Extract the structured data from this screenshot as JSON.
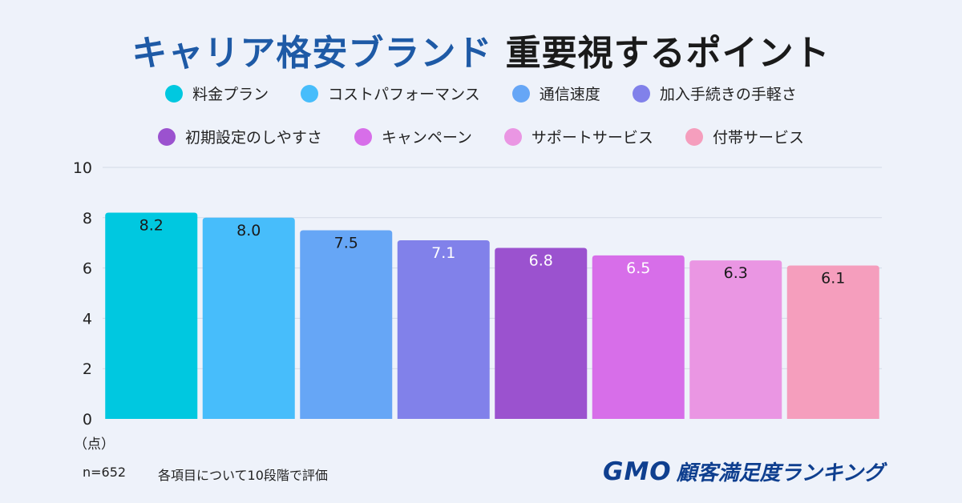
{
  "title": {
    "part1": "キャリア格安ブランド",
    "part2": "重要視するポイント"
  },
  "colors": [
    "#00c8e0",
    "#47bdfb",
    "#66a6f6",
    "#8181ea",
    "#9b52cf",
    "#d76ee9",
    "#ea96e3",
    "#f59ebd"
  ],
  "chart_data": {
    "type": "bar",
    "categories": [
      "料金プラン",
      "コストパフォーマンス",
      "通信速度",
      "加入手続きの手軽さ",
      "初期設定のしやすさ",
      "キャンペーン",
      "サポートサービス",
      "付帯サービス"
    ],
    "values": [
      8.2,
      8.0,
      7.5,
      7.1,
      6.8,
      6.5,
      6.3,
      6.1
    ],
    "value_labels": [
      "8.2",
      "8.0",
      "7.5",
      "7.1",
      "6.8",
      "6.5",
      "6.3",
      "6.1"
    ],
    "label_colors": [
      "#1a1a1a",
      "#1a1a1a",
      "#1a1a1a",
      "#ffffff",
      "#ffffff",
      "#ffffff",
      "#1a1a1a",
      "#1a1a1a"
    ],
    "ylim": [
      0,
      10
    ],
    "yticks": [
      0,
      2,
      4,
      6,
      8,
      10
    ],
    "ylabel": "（点）",
    "grid": true,
    "legend": "top"
  },
  "footer": {
    "sample": "n=652",
    "note": "各項目について10段階で評価"
  },
  "logo": {
    "brand": "GMO",
    "text": "顧客満足度ランキング"
  }
}
